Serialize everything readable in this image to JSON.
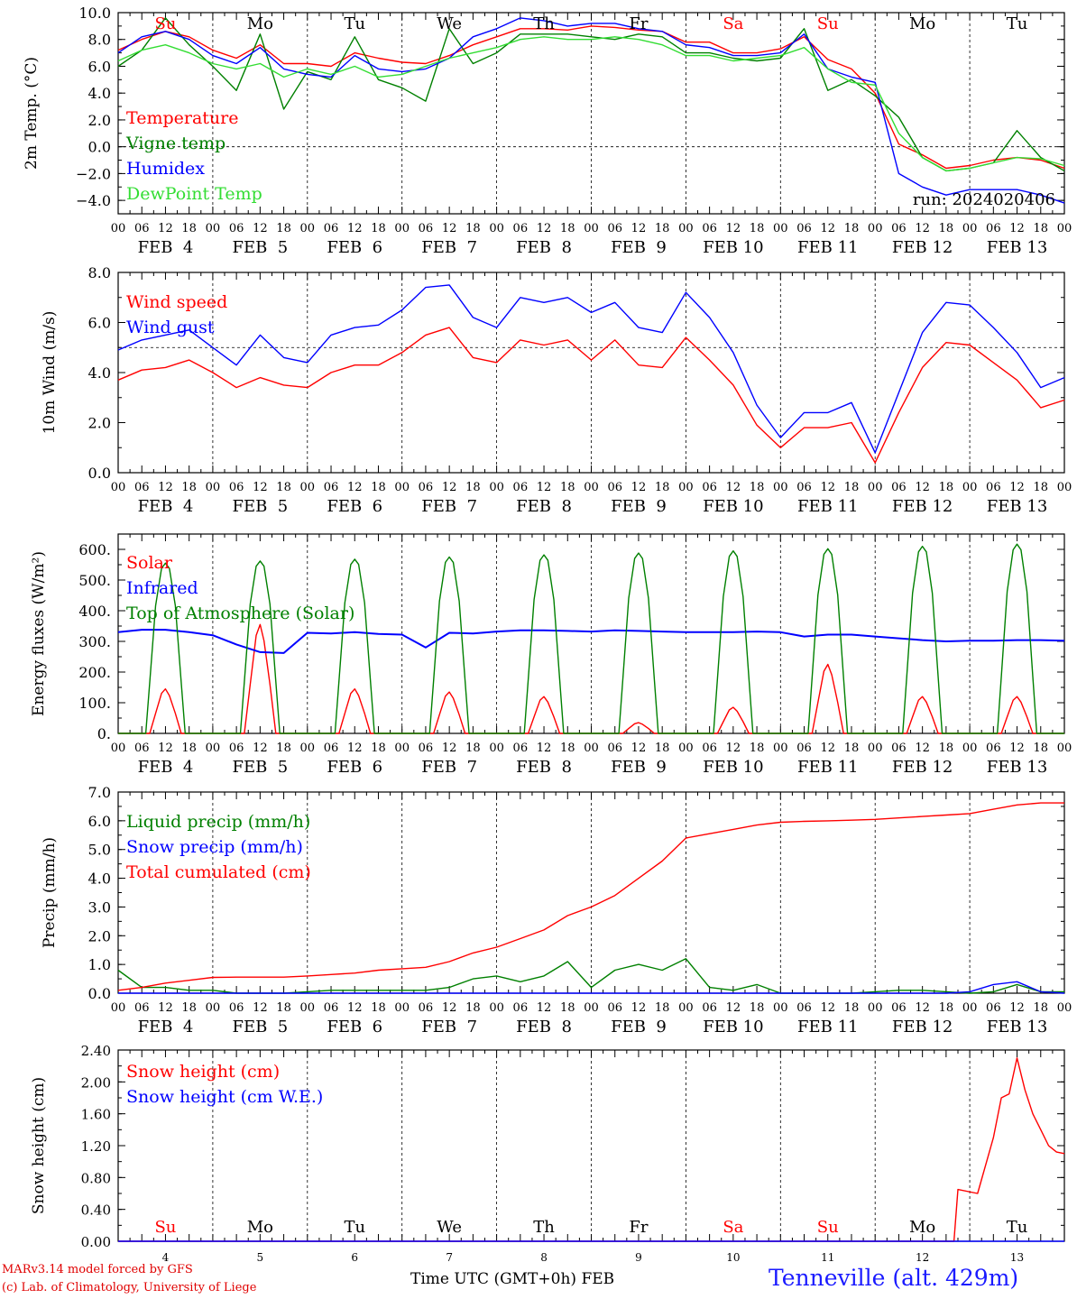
{
  "footer": {
    "credit_line1": "MARv3.14 model forced by GFS",
    "credit_line2": "(c) Lab. of Climatology, University of Liege",
    "time_caption": "Time UTC (GMT+0h) FEB",
    "station": "Tenneville (alt. 429m)"
  },
  "colors": {
    "red": "#ff0000",
    "green": "#008000",
    "blue": "#0000ff",
    "lightgreen": "#33dd33",
    "grid": "#000000"
  },
  "x_axis": {
    "hour_labels": [
      "00",
      "06",
      "12",
      "18"
    ],
    "date_labels": [
      "FEB  4",
      "FEB  5",
      "FEB  6",
      "FEB  7",
      "FEB  8",
      "FEB  9",
      "FEB 10",
      "FEB 11",
      "FEB 12",
      "FEB 13"
    ],
    "day_numbers": [
      "4",
      "5",
      "6",
      "7",
      "8",
      "9",
      "10",
      "11",
      "12",
      "13"
    ],
    "day_names": [
      "Su",
      "Mo",
      "Tu",
      "We",
      "Th",
      "Fr",
      "Sa",
      "Su",
      "Mo",
      "Tu"
    ],
    "weekend_color": [
      "red",
      "black",
      "black",
      "black",
      "black",
      "black",
      "red",
      "red",
      "black",
      "black"
    ],
    "range_hours": [
      0,
      240
    ]
  },
  "chart_data": [
    {
      "type": "line",
      "ylabel": "2m Temp. (°C)",
      "ylim": [
        -5,
        10
      ],
      "yticks": [
        "10.0",
        "8.0",
        "6.0",
        "4.0",
        "2.0",
        "0.0",
        "−2.0",
        "−4.0"
      ],
      "ytick_values": [
        10,
        8,
        6,
        4,
        2,
        0,
        -2,
        -4
      ],
      "reference_line": 0,
      "annotation": "run: 2024020406",
      "x_hours": [
        0,
        6,
        12,
        18,
        24,
        30,
        36,
        42,
        48,
        54,
        60,
        66,
        72,
        78,
        84,
        90,
        96,
        102,
        108,
        114,
        120,
        126,
        132,
        138,
        144,
        150,
        156,
        162,
        168,
        174,
        180,
        186,
        192,
        198,
        204,
        210,
        216,
        222,
        228,
        234,
        240
      ],
      "series": [
        {
          "name": "Temperature",
          "color": "red",
          "values": [
            7.2,
            8.0,
            8.6,
            8.2,
            7.2,
            6.6,
            7.6,
            6.2,
            6.2,
            6.0,
            7.0,
            6.6,
            6.3,
            6.2,
            6.8,
            7.6,
            8.2,
            8.8,
            8.8,
            8.7,
            9.0,
            8.9,
            8.7,
            8.6,
            7.8,
            7.8,
            7.0,
            7.0,
            7.3,
            8.2,
            6.5,
            5.8,
            4.0,
            0.2,
            -0.6,
            -1.6,
            -1.4,
            -1.0,
            -0.8,
            -1.0,
            -1.6
          ]
        },
        {
          "name": "Vigne temp",
          "color": "green",
          "values": [
            6.0,
            7.2,
            9.6,
            7.6,
            6.0,
            4.2,
            8.4,
            2.8,
            5.6,
            5.0,
            8.2,
            5.0,
            4.4,
            3.4,
            8.8,
            6.2,
            7.0,
            8.4,
            8.4,
            8.4,
            8.2,
            8.0,
            8.4,
            8.2,
            7.0,
            7.0,
            6.6,
            6.4,
            6.6,
            8.8,
            4.2,
            5.0,
            3.8,
            2.2,
            -0.8,
            -1.8,
            -1.6,
            -1.2,
            1.2,
            -0.8,
            -1.8
          ]
        },
        {
          "name": "Humidex",
          "color": "blue",
          "values": [
            7.0,
            8.2,
            8.6,
            8.0,
            6.8,
            6.2,
            7.4,
            5.8,
            5.4,
            5.2,
            6.8,
            5.8,
            5.6,
            5.8,
            6.6,
            8.2,
            8.8,
            9.6,
            9.4,
            9.0,
            9.2,
            9.2,
            8.8,
            8.6,
            7.6,
            7.4,
            6.8,
            6.8,
            7.0,
            8.4,
            5.8,
            5.2,
            4.8,
            -2.0,
            -3.0,
            -3.6,
            -3.2,
            -3.2,
            -3.2,
            -3.6,
            -4.2
          ]
        },
        {
          "name": "DewPoint Temp",
          "color": "lightgreen",
          "values": [
            6.4,
            7.2,
            7.6,
            7.0,
            6.2,
            5.8,
            6.2,
            5.2,
            5.8,
            5.4,
            6.0,
            5.2,
            5.4,
            6.0,
            6.6,
            7.0,
            7.4,
            8.0,
            8.2,
            8.0,
            8.0,
            8.2,
            8.0,
            7.6,
            6.8,
            6.8,
            6.4,
            6.6,
            6.8,
            7.4,
            5.8,
            4.8,
            4.6,
            1.0,
            -0.8,
            -1.8,
            -1.6,
            -1.2,
            -0.8,
            -0.9,
            -1.4
          ]
        }
      ]
    },
    {
      "type": "line",
      "ylabel": "10m Wind (m/s)",
      "ylim": [
        0,
        8
      ],
      "yticks": [
        "8.0",
        "6.0",
        "4.0",
        "2.0",
        "0.0"
      ],
      "ytick_values": [
        8,
        6,
        4,
        2,
        0
      ],
      "reference_line": 5,
      "x_hours": [
        0,
        6,
        12,
        18,
        24,
        30,
        36,
        42,
        48,
        54,
        60,
        66,
        72,
        78,
        84,
        90,
        96,
        102,
        108,
        114,
        120,
        126,
        132,
        138,
        144,
        150,
        156,
        162,
        168,
        174,
        180,
        186,
        192,
        198,
        204,
        210,
        216,
        222,
        228,
        234,
        240
      ],
      "series": [
        {
          "name": "Wind speed",
          "color": "red",
          "values": [
            3.7,
            4.1,
            4.2,
            4.5,
            4.0,
            3.4,
            3.8,
            3.5,
            3.4,
            4.0,
            4.3,
            4.3,
            4.8,
            5.5,
            5.8,
            4.6,
            4.4,
            5.3,
            5.1,
            5.3,
            4.5,
            5.3,
            4.3,
            4.2,
            5.4,
            4.5,
            3.5,
            1.9,
            1.0,
            1.8,
            1.8,
            2.0,
            0.4,
            2.4,
            4.2,
            5.2,
            5.1,
            4.4,
            3.7,
            2.6,
            2.9
          ]
        },
        {
          "name": "Wind gust",
          "color": "blue",
          "values": [
            4.9,
            5.3,
            5.5,
            5.7,
            5.0,
            4.3,
            5.5,
            4.6,
            4.4,
            5.5,
            5.8,
            5.9,
            6.5,
            7.4,
            7.5,
            6.2,
            5.8,
            7.0,
            6.8,
            7.0,
            6.4,
            6.8,
            5.8,
            5.6,
            7.2,
            6.2,
            4.8,
            2.7,
            1.4,
            2.4,
            2.4,
            2.8,
            0.8,
            3.2,
            5.6,
            6.8,
            6.7,
            5.8,
            4.8,
            3.4,
            3.8
          ]
        }
      ]
    },
    {
      "type": "line",
      "ylabel": "Energy fluxes (W/m²)",
      "ylim": [
        0,
        650
      ],
      "yticks": [
        "600.",
        "500.",
        "400.",
        "300.",
        "200.",
        "100.",
        "0."
      ],
      "ytick_values": [
        600,
        500,
        400,
        300,
        200,
        100,
        0
      ],
      "series": [
        {
          "name": "Solar",
          "color": "red",
          "daily_peaks": [
            145,
            355,
            145,
            135,
            120,
            35,
            85,
            225,
            120,
            120
          ]
        },
        {
          "name": "Infrared",
          "color": "blue",
          "x_hours": [
            0,
            6,
            12,
            18,
            24,
            30,
            36,
            42,
            48,
            54,
            60,
            66,
            72,
            78,
            84,
            90,
            96,
            102,
            108,
            114,
            120,
            126,
            132,
            138,
            144,
            150,
            156,
            162,
            168,
            174,
            180,
            186,
            192,
            198,
            204,
            210,
            216,
            222,
            228,
            234,
            240
          ],
          "values": [
            330,
            338,
            338,
            330,
            320,
            290,
            265,
            262,
            328,
            326,
            330,
            324,
            322,
            280,
            328,
            326,
            332,
            336,
            336,
            334,
            332,
            336,
            334,
            332,
            330,
            330,
            330,
            332,
            330,
            316,
            322,
            322,
            316,
            310,
            304,
            300,
            302,
            302,
            304,
            304,
            302
          ]
        },
        {
          "name": "Top of Atmosphere (Solar)",
          "color": "green",
          "daily_peaks": [
            555,
            562,
            568,
            575,
            582,
            588,
            595,
            602,
            610,
            617
          ]
        }
      ]
    },
    {
      "type": "line",
      "ylabel": "Precip (mm/h)",
      "ylim": [
        0,
        7
      ],
      "yticks": [
        "7.0",
        "6.0",
        "5.0",
        "4.0",
        "3.0",
        "2.0",
        "1.0",
        "0.0"
      ],
      "ytick_values": [
        7,
        6,
        5,
        4,
        3,
        2,
        1,
        0
      ],
      "x_hours": [
        0,
        6,
        12,
        18,
        24,
        30,
        36,
        42,
        48,
        54,
        60,
        66,
        72,
        78,
        84,
        90,
        96,
        102,
        108,
        114,
        120,
        126,
        132,
        138,
        144,
        150,
        156,
        162,
        168,
        174,
        180,
        186,
        192,
        198,
        204,
        210,
        216,
        222,
        228,
        234,
        240
      ],
      "series": [
        {
          "name": "Liquid precip (mm/h)",
          "color": "green",
          "values": [
            0.8,
            0.2,
            0.2,
            0.1,
            0.1,
            0.0,
            0.0,
            0.0,
            0.05,
            0.1,
            0.1,
            0.1,
            0.1,
            0.1,
            0.2,
            0.5,
            0.6,
            0.4,
            0.6,
            1.1,
            0.2,
            0.8,
            1.0,
            0.8,
            1.2,
            0.2,
            0.1,
            0.3,
            0.0,
            0.0,
            0.0,
            0.0,
            0.05,
            0.1,
            0.1,
            0.05,
            0.0,
            0.05,
            0.3,
            0.05,
            0.05
          ]
        },
        {
          "name": "Snow precip (mm/h)",
          "color": "blue",
          "values": [
            0,
            0,
            0,
            0,
            0,
            0,
            0,
            0,
            0,
            0,
            0,
            0,
            0,
            0,
            0,
            0,
            0,
            0,
            0,
            0,
            0,
            0,
            0,
            0,
            0,
            0,
            0,
            0,
            0,
            0,
            0,
            0,
            0,
            0,
            0,
            0,
            0.05,
            0.3,
            0.4,
            0.05,
            0.0
          ]
        },
        {
          "name": "Total cumulated (cm)",
          "color": "red",
          "values": [
            0.1,
            0.2,
            0.35,
            0.45,
            0.55,
            0.56,
            0.56,
            0.56,
            0.6,
            0.65,
            0.7,
            0.8,
            0.85,
            0.9,
            1.1,
            1.4,
            1.6,
            1.9,
            2.2,
            2.7,
            3.0,
            3.4,
            4.0,
            4.6,
            5.4,
            5.55,
            5.7,
            5.85,
            5.95,
            5.98,
            6.0,
            6.02,
            6.05,
            6.1,
            6.15,
            6.2,
            6.25,
            6.4,
            6.55,
            6.62,
            6.62
          ]
        }
      ]
    },
    {
      "type": "line",
      "ylabel": "Snow height (cm)",
      "ylim": [
        0,
        2.4
      ],
      "yticks": [
        "2.40",
        "2.00",
        "1.60",
        "1.20",
        "0.80",
        "0.40",
        "0.00"
      ],
      "ytick_values": [
        2.4,
        2.0,
        1.6,
        1.2,
        0.8,
        0.4,
        0.0
      ],
      "x_hours": [
        0,
        24,
        48,
        72,
        96,
        120,
        144,
        168,
        192,
        212,
        213,
        218,
        222,
        224,
        226,
        228,
        230,
        232,
        234,
        236,
        238,
        240
      ],
      "series": [
        {
          "name": "Snow height (cm)",
          "color": "red",
          "values": [
            0,
            0,
            0,
            0,
            0,
            0,
            0,
            0,
            0,
            0,
            0.65,
            0.6,
            1.3,
            1.8,
            1.85,
            2.3,
            1.9,
            1.6,
            1.4,
            1.2,
            1.12,
            1.1
          ]
        },
        {
          "name": "Snow height (cm W.E.)",
          "color": "blue",
          "values": [
            0,
            0,
            0,
            0,
            0,
            0,
            0,
            0,
            0,
            0,
            0,
            0,
            0,
            0,
            0,
            0,
            0,
            0,
            0,
            0,
            0,
            0
          ]
        }
      ]
    }
  ]
}
